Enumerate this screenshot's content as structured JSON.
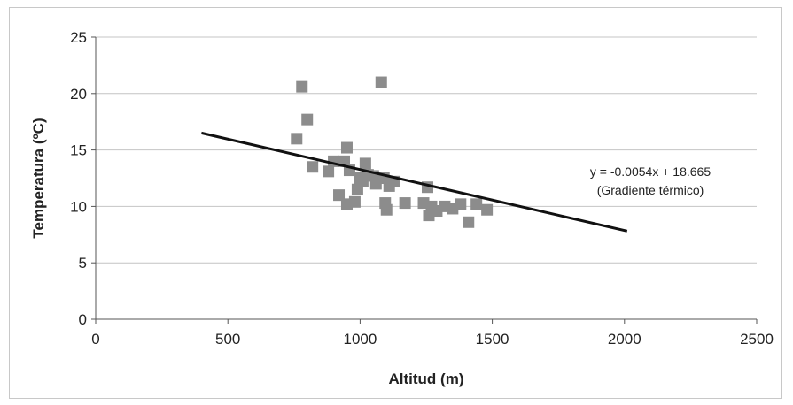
{
  "chart_data": {
    "type": "scatter",
    "title": "",
    "xlabel": "Altitud (m)",
    "ylabel": "Temperatura (ºC)",
    "xlim": [
      0,
      2500
    ],
    "ylim": [
      0,
      25
    ],
    "x_ticks": [
      "0",
      "500",
      "1000",
      "1500",
      "2000",
      "2500"
    ],
    "y_ticks": [
      "0",
      "5",
      "10",
      "15",
      "20",
      "25"
    ],
    "grid": "horizontal",
    "series": [
      {
        "color": "#8c8c8c",
        "marker": "square",
        "points": [
          [
            760,
            16.0
          ],
          [
            780,
            20.6
          ],
          [
            800,
            17.7
          ],
          [
            820,
            13.5
          ],
          [
            880,
            13.1
          ],
          [
            900,
            14.0
          ],
          [
            920,
            11.0
          ],
          [
            940,
            14.0
          ],
          [
            950,
            15.2
          ],
          [
            950,
            10.2
          ],
          [
            960,
            13.2
          ],
          [
            980,
            10.4
          ],
          [
            990,
            11.5
          ],
          [
            1000,
            12.5
          ],
          [
            1010,
            12.2
          ],
          [
            1020,
            13.8
          ],
          [
            1030,
            12.8
          ],
          [
            1050,
            12.7
          ],
          [
            1060,
            12.0
          ],
          [
            1080,
            21.0
          ],
          [
            1090,
            12.5
          ],
          [
            1095,
            10.3
          ],
          [
            1100,
            9.7
          ],
          [
            1110,
            11.8
          ],
          [
            1130,
            12.2
          ],
          [
            1170,
            10.3
          ],
          [
            1240,
            10.3
          ],
          [
            1255,
            11.7
          ],
          [
            1260,
            9.2
          ],
          [
            1270,
            10.0
          ],
          [
            1290,
            9.6
          ],
          [
            1320,
            10.0
          ],
          [
            1350,
            9.8
          ],
          [
            1380,
            10.2
          ],
          [
            1410,
            8.6
          ],
          [
            1440,
            10.2
          ],
          [
            1480,
            9.7
          ]
        ]
      }
    ],
    "trendline": {
      "color": "#111111",
      "x_range": [
        400,
        2010
      ],
      "slope": -0.0054,
      "intercept": 18.665,
      "label_line1": "y = -0.0054x + 18.665",
      "label_line2": "(Gradiente térmico)"
    }
  }
}
